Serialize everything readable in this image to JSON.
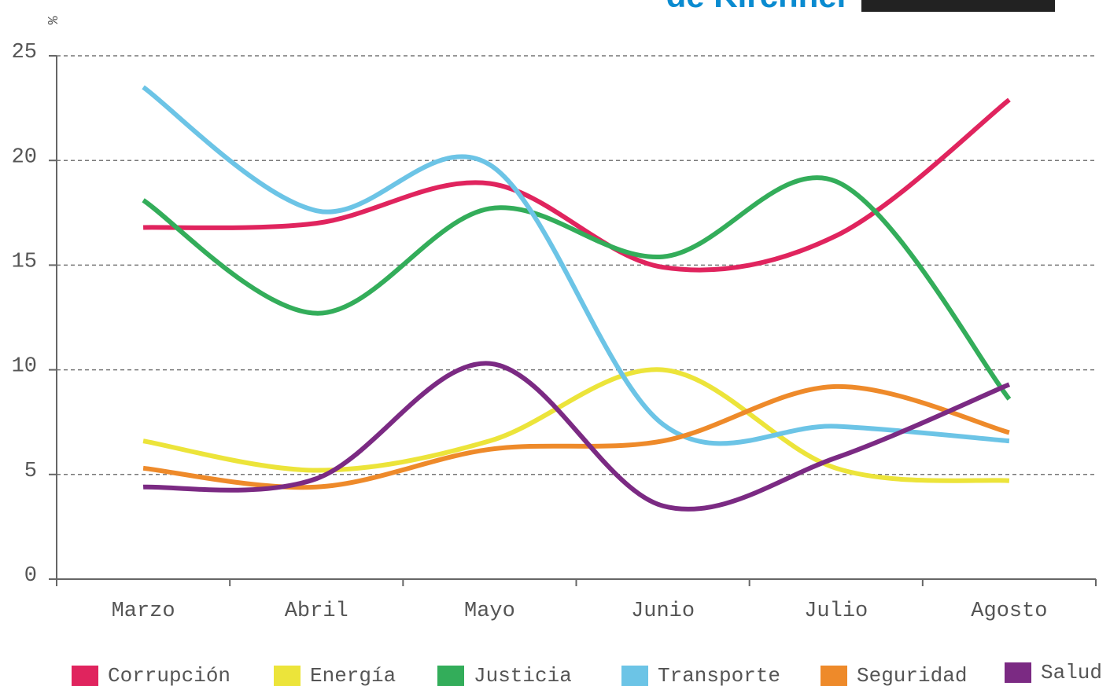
{
  "chart_data": {
    "type": "line",
    "title": "de Kirchner",
    "y_label": "%",
    "categories": [
      "Marzo",
      "Abril",
      "Mayo",
      "Junio",
      "Julio",
      "Agosto"
    ],
    "series": [
      {
        "name": "Corrupción",
        "color": "#e0245e",
        "values": [
          16.8,
          17.0,
          18.9,
          14.9,
          16.4,
          22.9
        ]
      },
      {
        "name": "Energía",
        "color": "#ece43a",
        "values": [
          6.6,
          5.2,
          6.6,
          10.0,
          5.3,
          4.7
        ]
      },
      {
        "name": "Justicia",
        "color": "#33ad5a",
        "values": [
          18.1,
          12.7,
          17.7,
          15.4,
          19.0,
          8.6
        ]
      },
      {
        "name": "Transporte",
        "color": "#6cc4e6",
        "values": [
          23.5,
          17.6,
          19.8,
          7.4,
          7.3,
          6.6
        ]
      },
      {
        "name": "Seguridad",
        "color": "#ee8a2a",
        "values": [
          5.3,
          4.4,
          6.2,
          6.6,
          9.2,
          7.0
        ]
      },
      {
        "name": "Salud",
        "color": "#7b2a83",
        "values": [
          4.4,
          4.8,
          10.3,
          3.5,
          5.8,
          9.3
        ]
      }
    ],
    "ylim": [
      0,
      25
    ],
    "yticks": [
      0,
      5,
      10,
      15,
      20,
      25
    ],
    "grid": true
  }
}
